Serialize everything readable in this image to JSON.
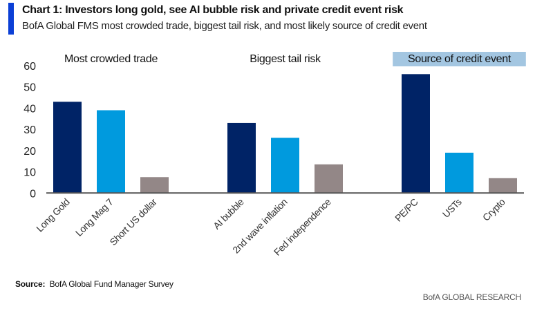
{
  "header": {
    "title": "Chart 1: Investors long gold, see AI bubble risk and private credit event risk",
    "subtitle": "BofA Global FMS most crowded trade, biggest tail risk, and most likely source of credit event",
    "accent_color": "#0b3fd6"
  },
  "footer": {
    "source_label": "Source:",
    "source_text": "BofA Global Fund Manager Survey",
    "brand": "BofA GLOBAL RESEARCH"
  },
  "chart_data": {
    "type": "bar",
    "title": "Chart 1: Investors long gold, see AI bubble risk and private credit event risk",
    "subtitle": "BofA Global FMS most crowded trade, biggest tail risk, and most likely source of credit event",
    "xlabel": "",
    "ylabel": "",
    "ylim": [
      0,
      60
    ],
    "yticks": [
      0,
      10,
      20,
      30,
      40,
      50,
      60
    ],
    "grid": false,
    "legend": "none",
    "groups": [
      {
        "name": "Most crowded trade",
        "highlighted": false,
        "categories": [
          "Long Gold",
          "Long Mag 7",
          "Short US dollar"
        ],
        "values": [
          43,
          39,
          7.5
        ]
      },
      {
        "name": "Biggest tail risk",
        "highlighted": false,
        "categories": [
          "AI bubble",
          "2nd wave inflation",
          "Fed independence"
        ],
        "values": [
          33,
          26,
          13.5
        ]
      },
      {
        "name": "Source of credit event",
        "highlighted": true,
        "categories": [
          "PE/PC",
          "USTs",
          "Crypto"
        ],
        "values": [
          56,
          19,
          7
        ]
      }
    ],
    "bar_colors": [
      "#002366",
      "#009ade",
      "#938787"
    ],
    "highlight_color": "#a3c6e1",
    "axis_color": "#555555"
  }
}
